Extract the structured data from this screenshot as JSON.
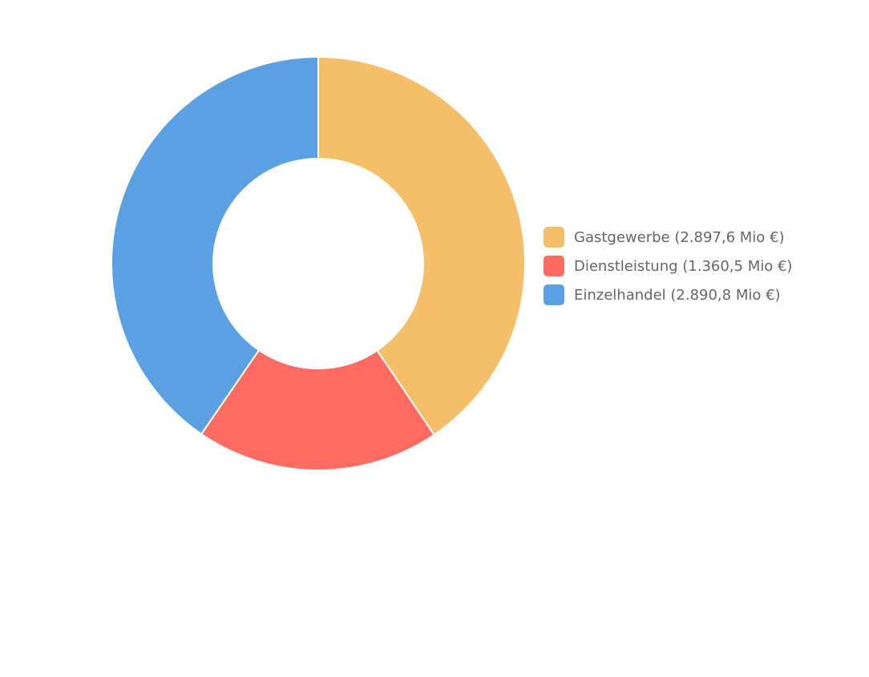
{
  "chart_data": {
    "type": "donut",
    "categories": [
      "Gastgewerbe (2.897,6 Mio €)",
      "Dienstleistung (1.360,5 Mio €)",
      "Einzelhandel (2.890,8 Mio €)"
    ],
    "values": [
      2897.6,
      1360.5,
      2890.8
    ],
    "colors": [
      "#f5be69",
      "#ff6b61",
      "#5aa0e2"
    ],
    "legend": "right"
  }
}
